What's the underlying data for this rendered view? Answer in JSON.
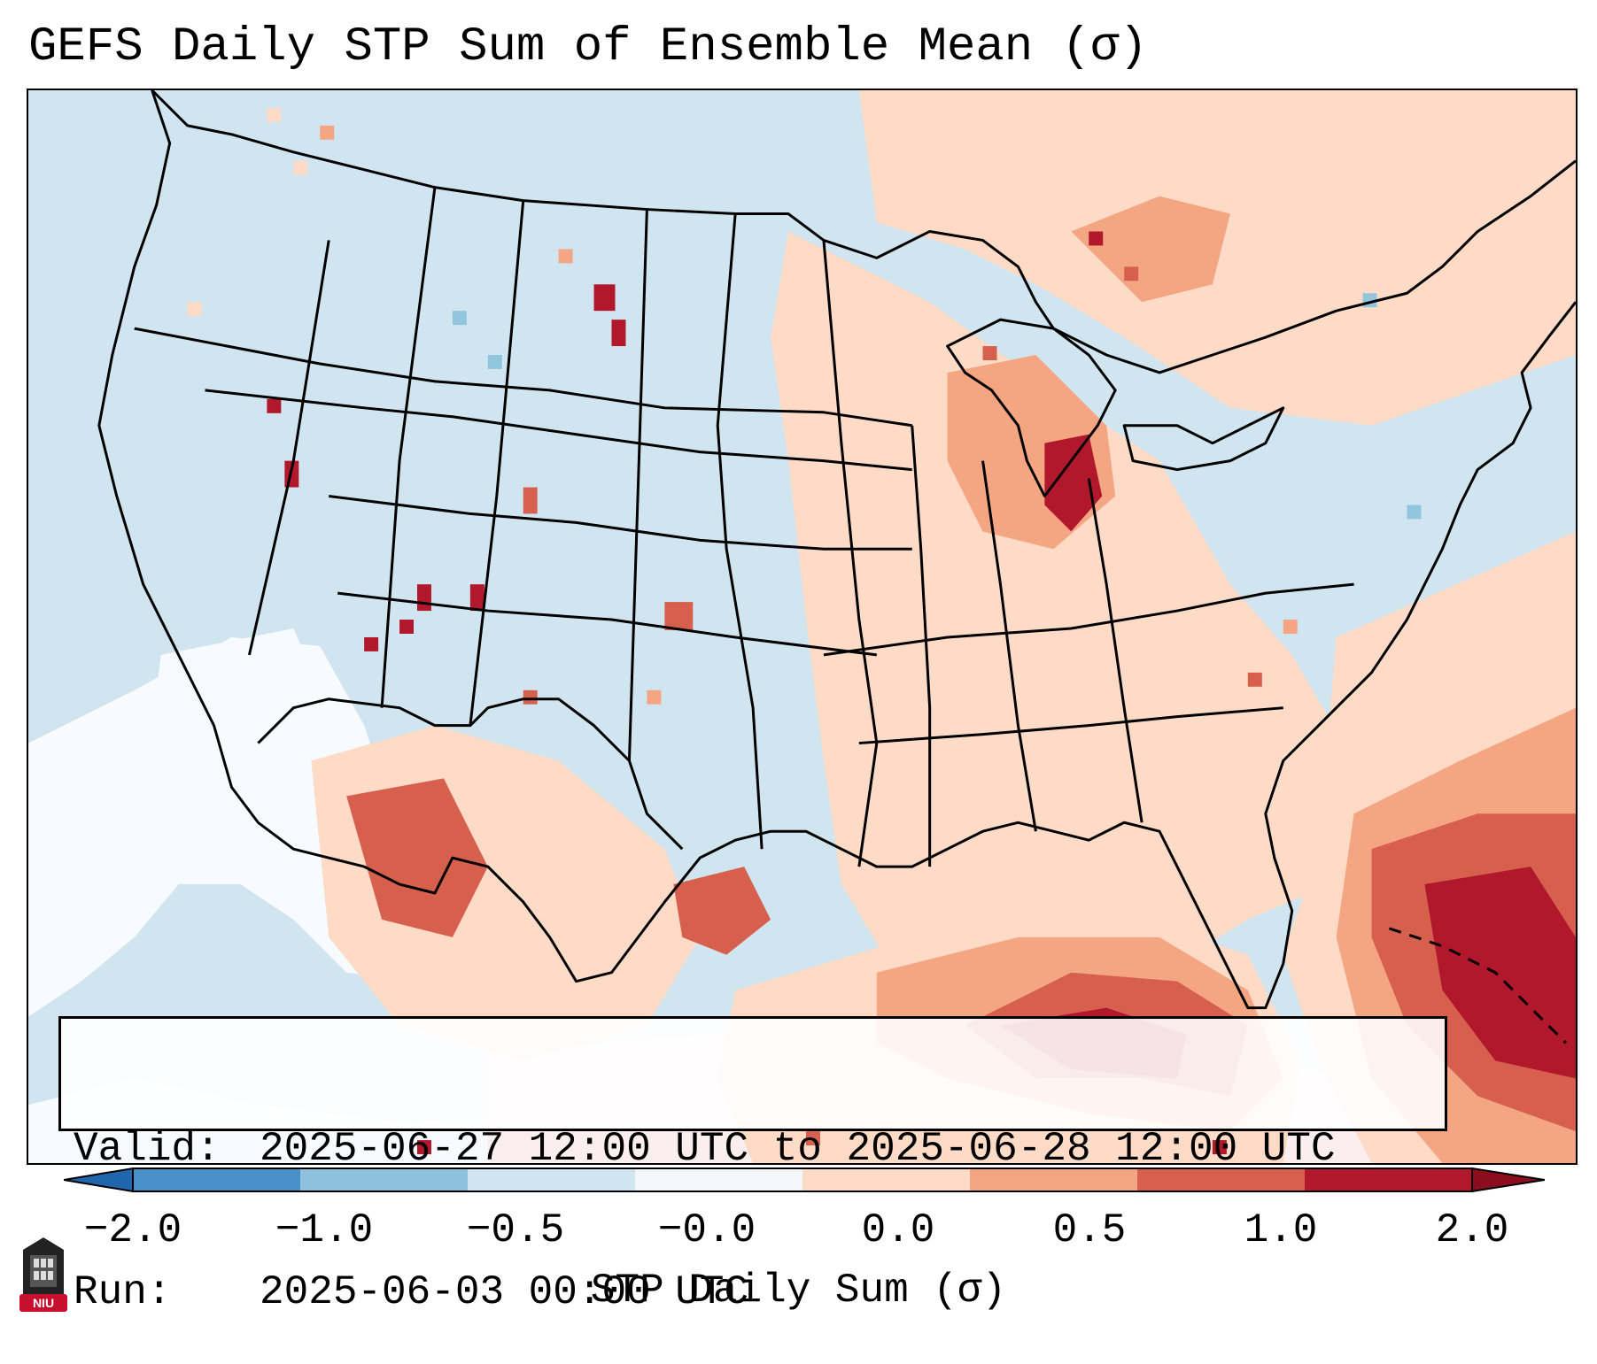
{
  "title": "GEFS Daily STP Sum of Ensemble Mean (σ)",
  "info": {
    "valid_label": "Valid:",
    "valid_value": "2025-06-27 12:00 UTC to 2025-06-28 12:00 UTC",
    "run_label": "Run:",
    "run_value": "2025-06-03 00:00 UTC"
  },
  "colorbar": {
    "label": "STP Daily Sum (σ)",
    "ticks": [
      "−2.0",
      "−1.0",
      "−0.5",
      "−0.0",
      "0.0",
      "0.5",
      "1.0",
      "2.0"
    ],
    "colors": [
      "#4a90c8",
      "#8fc0de",
      "#d1e5f0",
      "#f3f6fa",
      "#fddbc7",
      "#f4a582",
      "#d6604d",
      "#b2182b"
    ]
  },
  "map": {
    "ocean_color": "#d1e5f0",
    "region": "Continental United States"
  },
  "logo": {
    "text": "NIU"
  }
}
